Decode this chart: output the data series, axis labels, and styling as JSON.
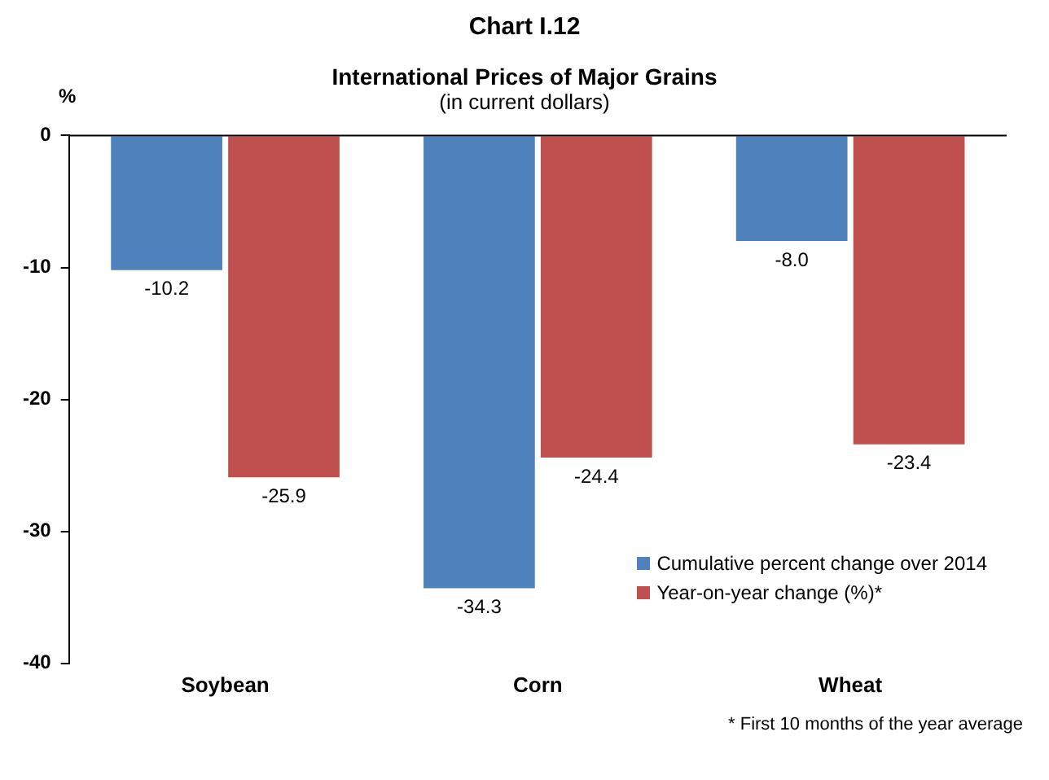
{
  "chart_data": {
    "type": "bar",
    "title": "Chart I.12",
    "subtitle": "International Prices of Major Grains",
    "ylabel": "%",
    "annotations": [
      "(in current dollars)",
      "* First 10 months of the year average"
    ],
    "categories": [
      "Soybean",
      "Corn",
      "Wheat"
    ],
    "series": [
      {
        "name": "Cumulative percent change over 2014",
        "color": "#4f81bd",
        "values": [
          -10.2,
          -34.3,
          -8.0
        ],
        "value_labels": [
          "-10.2",
          "-34.3",
          "-8.0"
        ]
      },
      {
        "name": "Year-on-year change (%)*",
        "color": "#c0504d",
        "values": [
          -25.9,
          -24.4,
          -23.4
        ],
        "value_labels": [
          "-25.9",
          "-24.4",
          "-23.4"
        ]
      }
    ],
    "ylim": [
      -40,
      0
    ],
    "yticks": [
      0,
      -10,
      -20,
      -30,
      -40
    ],
    "grid": false,
    "legend": "bottom right"
  }
}
